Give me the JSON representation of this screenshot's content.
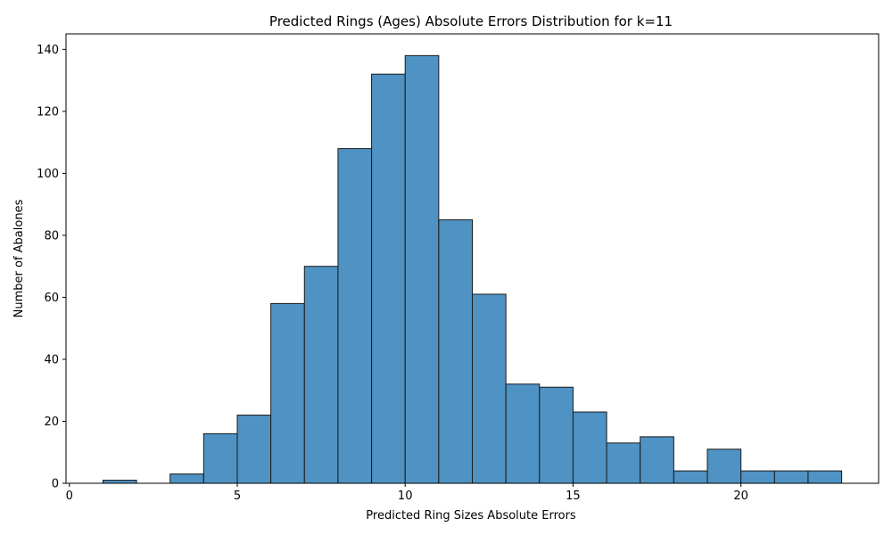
{
  "chart_data": {
    "type": "bar",
    "title": "Predicted Rings (Ages) Absolute Errors Distribution for k=11",
    "xlabel": "Predicted Ring Sizes Absolute Errors",
    "ylabel": "Number of Abalones",
    "xlim": [
      -0.1,
      24.1
    ],
    "ylim": [
      0,
      145
    ],
    "x_ticks": [
      0,
      5,
      10,
      15,
      20
    ],
    "y_ticks": [
      0,
      20,
      40,
      60,
      80,
      100,
      120,
      140
    ],
    "bin_edges": [
      1,
      2,
      3,
      4,
      5,
      6,
      7,
      8,
      9,
      10,
      11,
      12,
      13,
      14,
      15,
      16,
      17,
      18,
      19,
      20,
      21,
      22,
      23
    ],
    "values": [
      1,
      0,
      3,
      16,
      22,
      58,
      70,
      108,
      132,
      138,
      85,
      61,
      32,
      31,
      23,
      13,
      15,
      4,
      11,
      4,
      4,
      4
    ],
    "grid": false,
    "bar_color": "#4f92c4",
    "edge_color": "#1a1a1a"
  }
}
